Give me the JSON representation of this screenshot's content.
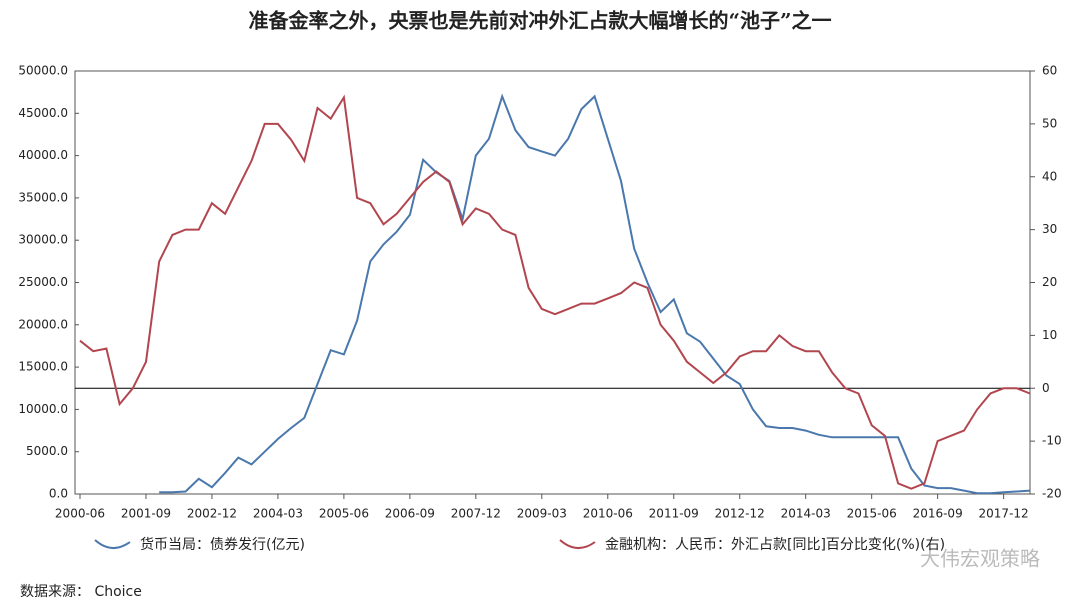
{
  "chart_data": {
    "type": "line",
    "title": "准备金率之外，央票也是先前对冲外汇占款大幅增长的“池子”之一",
    "x": [
      "2000-06",
      "2000-09",
      "2000-12",
      "2001-03",
      "2001-06",
      "2001-09",
      "2001-12",
      "2002-03",
      "2002-06",
      "2002-09",
      "2002-12",
      "2003-03",
      "2003-06",
      "2003-09",
      "2003-12",
      "2004-03",
      "2004-06",
      "2004-09",
      "2004-12",
      "2005-03",
      "2005-06",
      "2005-09",
      "2005-12",
      "2006-03",
      "2006-06",
      "2006-09",
      "2006-12",
      "2007-03",
      "2007-06",
      "2007-09",
      "2007-12",
      "2008-03",
      "2008-06",
      "2008-09",
      "2008-12",
      "2009-03",
      "2009-06",
      "2009-09",
      "2009-12",
      "2010-03",
      "2010-06",
      "2010-09",
      "2010-12",
      "2011-03",
      "2011-06",
      "2011-09",
      "2011-12",
      "2012-03",
      "2012-06",
      "2012-09",
      "2012-12",
      "2013-03",
      "2013-06",
      "2013-09",
      "2013-12",
      "2014-03",
      "2014-06",
      "2014-09",
      "2014-12",
      "2015-03",
      "2015-06",
      "2015-09",
      "2015-12",
      "2016-03",
      "2016-06",
      "2016-09",
      "2016-12",
      "2017-03",
      "2017-06",
      "2017-09",
      "2017-12",
      "2018-03",
      "2018-06"
    ],
    "xlim": [
      "2000-06",
      "2018-06"
    ],
    "xticks": [
      "2000-06",
      "2001-09",
      "2002-12",
      "2004-03",
      "2005-06",
      "2006-09",
      "2007-12",
      "2009-03",
      "2010-06",
      "2011-09",
      "2012-12",
      "2014-03",
      "2015-06",
      "2016-09",
      "2017-12"
    ],
    "ylim": [
      0,
      50000
    ],
    "yticks": [
      {
        "value": 0,
        "label": "0.0"
      },
      {
        "value": 5000,
        "label": "5000.0"
      },
      {
        "value": 10000,
        "label": "10000.0"
      },
      {
        "value": 15000,
        "label": "15000.0"
      },
      {
        "value": 20000,
        "label": "20000.0"
      },
      {
        "value": 25000,
        "label": "25000.0"
      },
      {
        "value": 30000,
        "label": "30000.0"
      },
      {
        "value": 35000,
        "label": "35000.0"
      },
      {
        "value": 40000,
        "label": "40000.0"
      },
      {
        "value": 45000,
        "label": "45000.0"
      },
      {
        "value": 50000,
        "label": "50000.0"
      }
    ],
    "y2lim": [
      -20,
      60
    ],
    "y2ticks": [
      -20,
      -10,
      0,
      10,
      20,
      30,
      40,
      50,
      60
    ],
    "series": [
      {
        "name": "货币当局：债券发行(亿元)",
        "color": "#4a78ad",
        "values": [
          null,
          null,
          null,
          null,
          null,
          null,
          200,
          200,
          300,
          1800,
          800,
          2500,
          4300,
          3500,
          5000,
          6500,
          7800,
          9000,
          13000,
          17000,
          16500,
          20500,
          27500,
          29500,
          31000,
          33000,
          39500,
          38000,
          37000,
          32500,
          40000,
          42000,
          47000,
          43000,
          41000,
          40500,
          40000,
          42000,
          45500,
          47000,
          42000,
          37000,
          29000,
          25000,
          21500,
          23000,
          19000,
          18000,
          16000,
          14000,
          13000,
          10000,
          8000,
          7800,
          7800,
          7500,
          7000,
          6700,
          6700,
          6700,
          6700,
          6700,
          6700,
          3000,
          1000,
          700,
          700,
          400,
          100,
          100,
          200,
          300,
          400
        ]
      },
      {
        "name": "金融机构：人民币：外汇占款[同比]百分比变化(%)(右)",
        "color": "#b2464f",
        "axis": "y2",
        "values": [
          9,
          7,
          7.5,
          -3,
          0,
          5,
          24,
          29,
          30,
          30,
          35,
          33,
          38,
          43,
          50,
          50,
          47,
          43,
          53,
          51,
          55,
          36,
          35,
          31,
          33,
          36,
          39,
          41,
          39,
          31,
          34,
          33,
          30,
          29,
          19,
          15,
          14,
          15,
          16,
          16,
          17,
          18,
          20,
          19,
          12,
          9,
          5,
          3,
          1,
          3,
          6,
          7,
          7,
          10,
          8,
          7,
          7,
          3,
          0,
          -1,
          -7,
          -9,
          -18,
          -19,
          -18,
          -10,
          -9,
          -8,
          -4,
          -1,
          0,
          0,
          -1
        ]
      }
    ],
    "source": "数据来源：  Choice",
    "watermark": "大伟宏观策略"
  }
}
